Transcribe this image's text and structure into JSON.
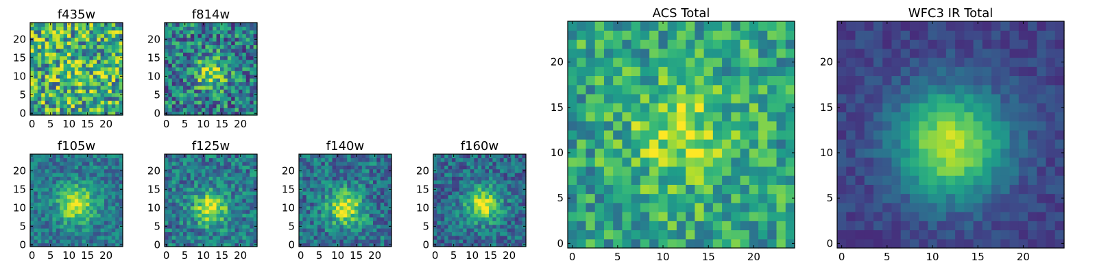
{
  "chart_data": [
    {
      "type": "heatmap",
      "title": "f435w",
      "n": 25,
      "peak": [
        12,
        11
      ],
      "amp": 0.1,
      "sigma": 3.5,
      "noise": 0.38,
      "base": 0.62,
      "xticks": [
        0,
        5,
        10,
        15,
        20
      ],
      "yticks": [
        0,
        5,
        10,
        15,
        20
      ],
      "xlim": [
        0,
        24
      ],
      "ylim": [
        0,
        24
      ],
      "seed": 11
    },
    {
      "type": "heatmap",
      "title": "f814w",
      "n": 25,
      "peak": [
        12,
        11
      ],
      "amp": 0.45,
      "sigma": 3.0,
      "noise": 0.32,
      "base": 0.42,
      "xticks": [
        0,
        5,
        10,
        15,
        20
      ],
      "yticks": [
        0,
        5,
        10,
        15,
        20
      ],
      "xlim": [
        0,
        24
      ],
      "ylim": [
        0,
        24
      ],
      "seed": 23
    },
    {
      "type": "heatmap",
      "title": "f105w",
      "n": 25,
      "peak": [
        12,
        11
      ],
      "amp": 0.55,
      "sigma": 3.5,
      "noise": 0.18,
      "base": 0.4,
      "xticks": [
        0,
        5,
        10,
        15,
        20
      ],
      "yticks": [
        0,
        5,
        10,
        15,
        20
      ],
      "xlim": [
        0,
        24
      ],
      "ylim": [
        0,
        24
      ],
      "seed": 37
    },
    {
      "type": "heatmap",
      "title": "f125w",
      "n": 25,
      "peak": [
        12,
        10
      ],
      "amp": 0.55,
      "sigma": 3.2,
      "noise": 0.22,
      "base": 0.4,
      "xticks": [
        0,
        5,
        10,
        15,
        20
      ],
      "yticks": [
        0,
        5,
        10,
        15,
        20
      ],
      "xlim": [
        0,
        24
      ],
      "ylim": [
        0,
        24
      ],
      "seed": 41
    },
    {
      "type": "heatmap",
      "title": "f140w",
      "n": 25,
      "peak": [
        12,
        10
      ],
      "amp": 0.6,
      "sigma": 3.2,
      "noise": 0.22,
      "base": 0.38,
      "xticks": [
        0,
        5,
        10,
        15,
        20
      ],
      "yticks": [
        0,
        5,
        10,
        15,
        20
      ],
      "xlim": [
        0,
        24
      ],
      "ylim": [
        0,
        24
      ],
      "seed": 53
    },
    {
      "type": "heatmap",
      "title": "f160w",
      "n": 25,
      "peak": [
        13,
        11
      ],
      "amp": 0.6,
      "sigma": 3.3,
      "noise": 0.2,
      "base": 0.35,
      "xticks": [
        0,
        5,
        10,
        15,
        20
      ],
      "yticks": [
        0,
        5,
        10,
        15,
        20
      ],
      "xlim": [
        0,
        24
      ],
      "ylim": [
        0,
        24
      ],
      "seed": 67
    },
    {
      "type": "heatmap",
      "title": "ACS Total",
      "n": 25,
      "peak": [
        12,
        12
      ],
      "amp": 0.3,
      "sigma": 4.0,
      "noise": 0.24,
      "base": 0.58,
      "xticks": [
        0,
        5,
        10,
        15,
        20
      ],
      "yticks": [
        0,
        5,
        10,
        15,
        20
      ],
      "xlim": [
        0,
        24
      ],
      "ylim": [
        0,
        24
      ],
      "seed": 79
    },
    {
      "type": "heatmap",
      "title": "WFC3 IR Total",
      "n": 25,
      "peak": [
        12,
        11
      ],
      "amp": 0.7,
      "sigma": 4.2,
      "noise": 0.08,
      "base": 0.2,
      "xticks": [
        0,
        5,
        10,
        15,
        20
      ],
      "yticks": [
        0,
        5,
        10,
        15,
        20
      ],
      "xlim": [
        0,
        24
      ],
      "ylim": [
        0,
        24
      ],
      "seed": 97
    }
  ],
  "colormap": [
    "#440154",
    "#482878",
    "#3e4989",
    "#31688e",
    "#26828e",
    "#1f9e89",
    "#35b779",
    "#6ece58",
    "#b5de2b",
    "#fde725"
  ]
}
